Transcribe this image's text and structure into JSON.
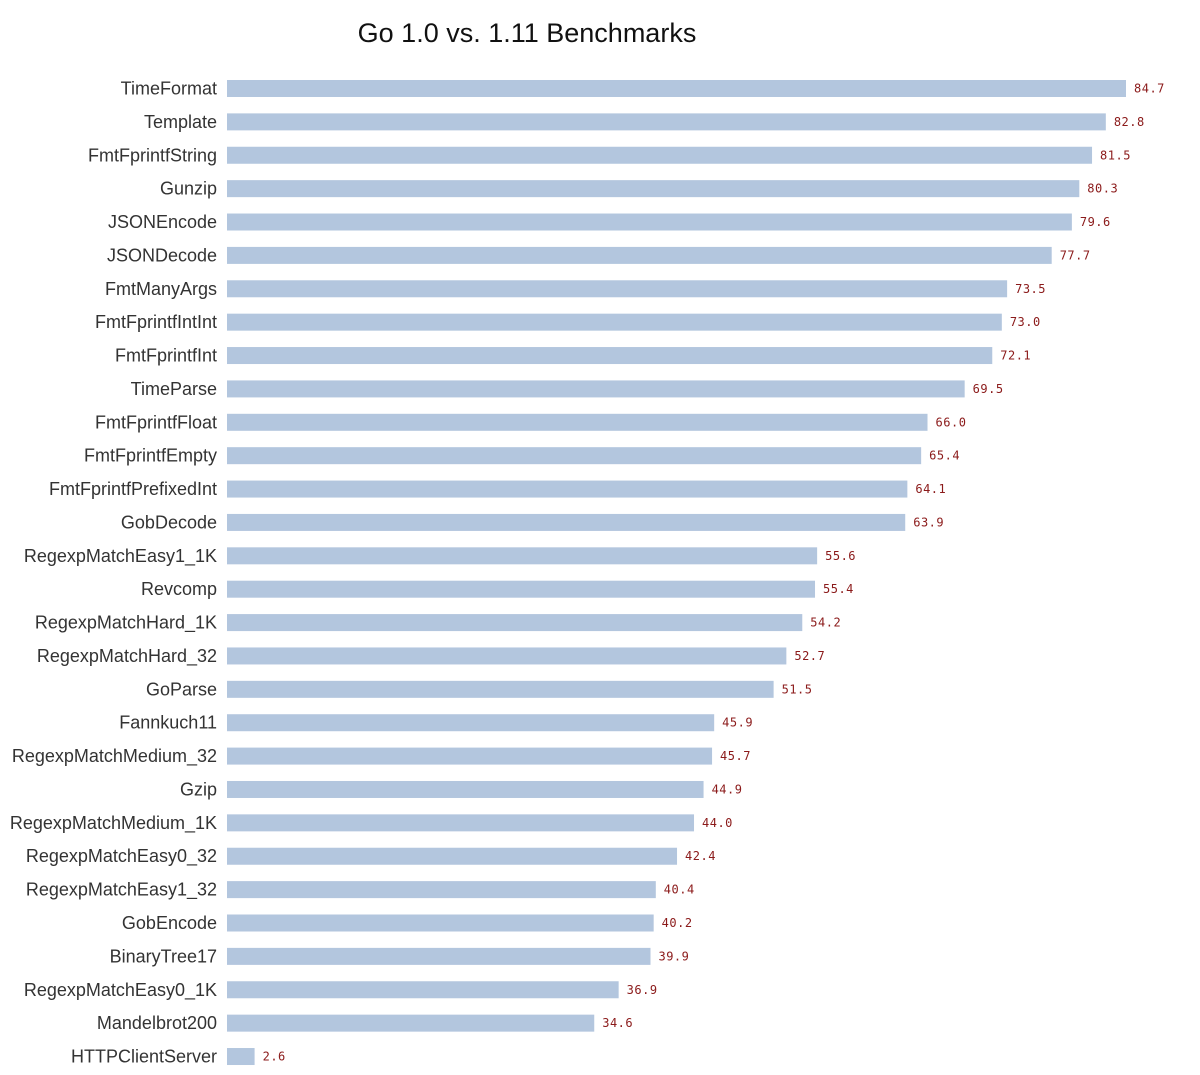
{
  "chart_data": {
    "type": "bar",
    "orientation": "horizontal",
    "title": "Go 1.0 vs. 1.11 Benchmarks",
    "xlabel": "",
    "ylabel": "",
    "xlim": [
      0,
      84.7
    ],
    "grid": false,
    "legend": "none",
    "bar_color": "#b3c6de",
    "value_label_color": "#8b1a1a",
    "categories": [
      "TimeFormat",
      "Template",
      "FmtFprintfString",
      "Gunzip",
      "JSONEncode",
      "JSONDecode",
      "FmtManyArgs",
      "FmtFprintfIntInt",
      "FmtFprintfInt",
      "TimeParse",
      "FmtFprintfFloat",
      "FmtFprintfEmpty",
      "FmtFprintfPrefixedInt",
      "GobDecode",
      "RegexpMatchEasy1_1K",
      "Revcomp",
      "RegexpMatchHard_1K",
      "RegexpMatchHard_32",
      "GoParse",
      "Fannkuch11",
      "RegexpMatchMedium_32",
      "Gzip",
      "RegexpMatchMedium_1K",
      "RegexpMatchEasy0_32",
      "RegexpMatchEasy1_32",
      "GobEncode",
      "BinaryTree17",
      "RegexpMatchEasy0_1K",
      "Mandelbrot200",
      "HTTPClientServer"
    ],
    "values": [
      84.7,
      82.8,
      81.5,
      80.3,
      79.6,
      77.7,
      73.5,
      73.0,
      72.1,
      69.5,
      66.0,
      65.4,
      64.1,
      63.9,
      55.6,
      55.4,
      54.2,
      52.7,
      51.5,
      45.9,
      45.7,
      44.9,
      44.0,
      42.4,
      40.4,
      40.2,
      39.9,
      36.9,
      34.6,
      2.6
    ],
    "value_labels": [
      "84.7",
      "82.8",
      "81.5",
      "80.3",
      "79.6",
      "77.7",
      "73.5",
      "73.0",
      "72.1",
      "69.5",
      "66.0",
      "65.4",
      "64.1",
      "63.9",
      "55.6",
      "55.4",
      "54.2",
      "52.7",
      "51.5",
      "45.9",
      "45.7",
      "44.9",
      "44.0",
      "42.4",
      "40.4",
      "40.2",
      "39.9",
      "36.9",
      "34.6",
      "2.6"
    ]
  }
}
